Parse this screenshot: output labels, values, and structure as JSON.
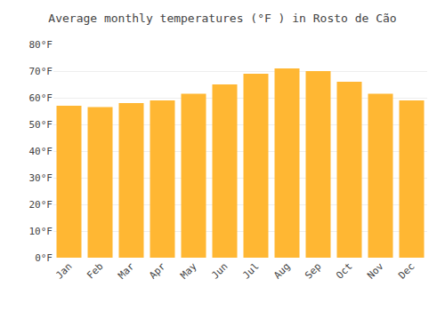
{
  "chart_data": {
    "type": "bar",
    "title": "Average monthly temperatures (°F ) in Rosto de Cão",
    "categories": [
      "Jan",
      "Feb",
      "Mar",
      "Apr",
      "May",
      "Jun",
      "Jul",
      "Aug",
      "Sep",
      "Oct",
      "Nov",
      "Dec"
    ],
    "values": [
      57,
      56.5,
      58,
      59,
      61.5,
      65,
      69,
      71,
      70,
      66,
      61.5,
      59
    ],
    "color": "#FFB733",
    "ylim": [
      0,
      80
    ],
    "yticks": [
      {
        "value": 0,
        "label": "0°F"
      },
      {
        "value": 10,
        "label": "10°F"
      },
      {
        "value": 20,
        "label": "20°F"
      },
      {
        "value": 30,
        "label": "30°F"
      },
      {
        "value": 40,
        "label": "40°F"
      },
      {
        "value": 50,
        "label": "50°F"
      },
      {
        "value": 60,
        "label": "60°F"
      },
      {
        "value": 70,
        "label": "70°F"
      },
      {
        "value": 80,
        "label": "80°F"
      }
    ],
    "grid": true
  }
}
